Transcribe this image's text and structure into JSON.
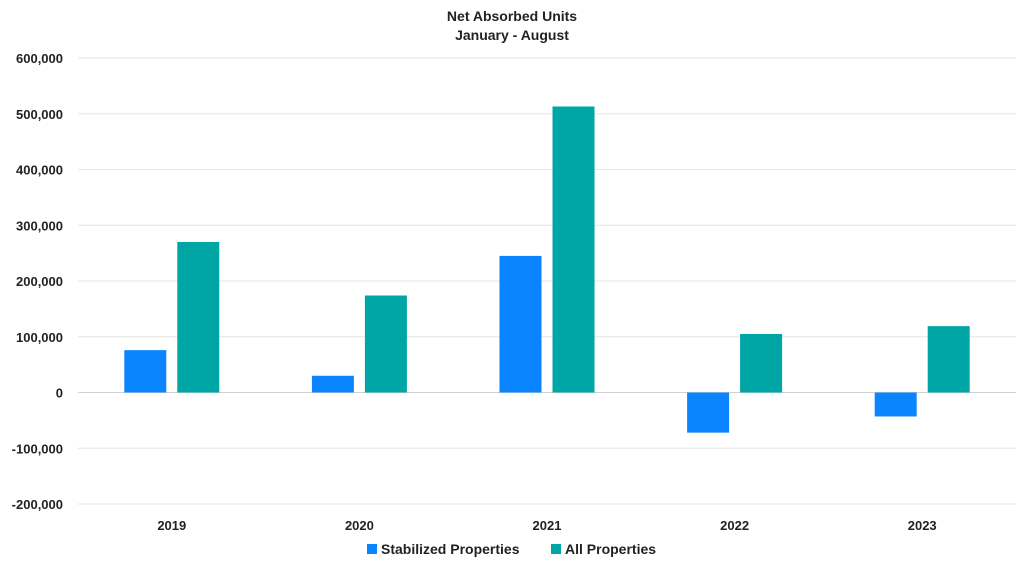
{
  "chart_data": {
    "type": "bar",
    "title": "Net Absorbed Units",
    "subtitle": "January - August",
    "categories": [
      "2019",
      "2020",
      "2021",
      "2022",
      "2023"
    ],
    "series": [
      {
        "name": "Stabilized Properties",
        "color": "#0a84ff",
        "values": [
          76000,
          30000,
          245000,
          -72000,
          -43000
        ]
      },
      {
        "name": "All Properties",
        "color": "#00a6a6",
        "values": [
          270000,
          174000,
          513000,
          105000,
          119000
        ]
      }
    ],
    "ylim": [
      -200000,
      600000
    ],
    "yticks": [
      600000,
      500000,
      400000,
      300000,
      200000,
      100000,
      0,
      -100000,
      -200000
    ],
    "ytick_labels": [
      "600,000",
      "500,000",
      "400,000",
      "300,000",
      "200,000",
      "100,000",
      "0",
      "-100,000",
      "-200,000"
    ],
    "grid": true,
    "legend_position": "bottom"
  }
}
